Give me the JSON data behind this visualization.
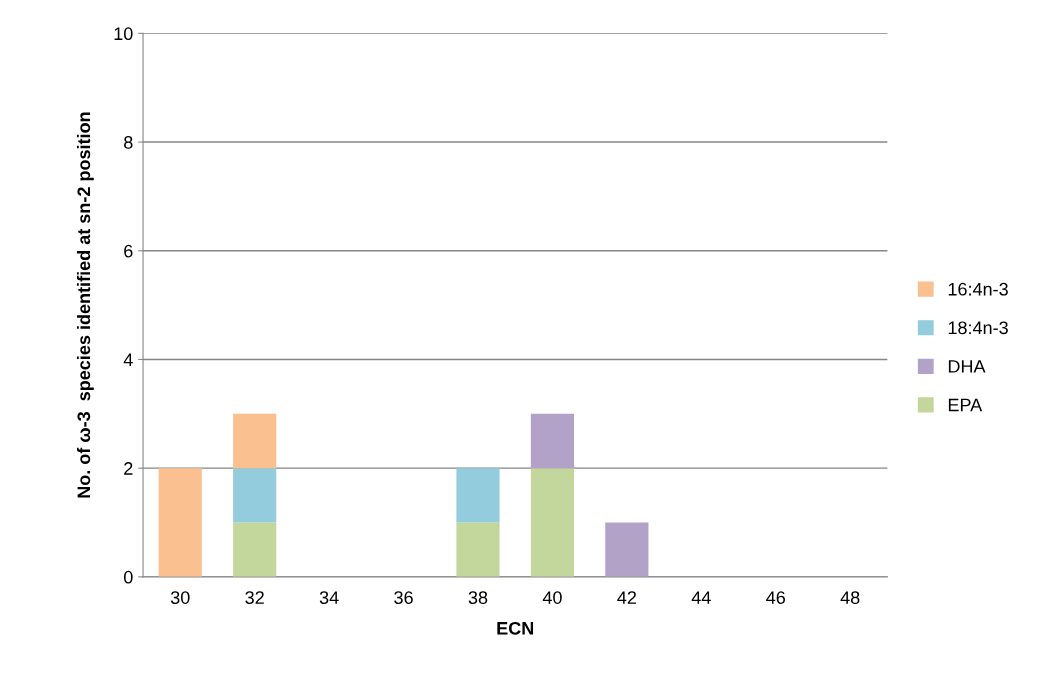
{
  "chart_data": {
    "type": "bar",
    "stacked": true,
    "xlabel": "ECN",
    "ylabel": "No. of ω-3  species identified at sn-2 position",
    "categories": [
      "30",
      "32",
      "34",
      "36",
      "38",
      "40",
      "42",
      "44",
      "46",
      "48"
    ],
    "series": [
      {
        "name": "EPA",
        "color": "#c3d69b",
        "values": [
          0,
          1,
          0,
          0,
          1,
          2,
          0,
          0,
          0,
          0
        ]
      },
      {
        "name": "DHA",
        "color": "#b3a2c7",
        "values": [
          0,
          0,
          0,
          0,
          0,
          1,
          1,
          0,
          0,
          0
        ]
      },
      {
        "name": "18:4n-3",
        "color": "#93cddd",
        "values": [
          0,
          1,
          0,
          0,
          1,
          0,
          0,
          0,
          0,
          0
        ]
      },
      {
        "name": "16:4n-3",
        "color": "#fac090",
        "values": [
          2,
          1,
          0,
          0,
          0,
          0,
          0,
          0,
          0,
          0
        ]
      }
    ],
    "ylim": [
      0,
      10
    ],
    "yticks": [
      0,
      2,
      4,
      6,
      8,
      10
    ],
    "grid": "y",
    "legend": "right"
  }
}
